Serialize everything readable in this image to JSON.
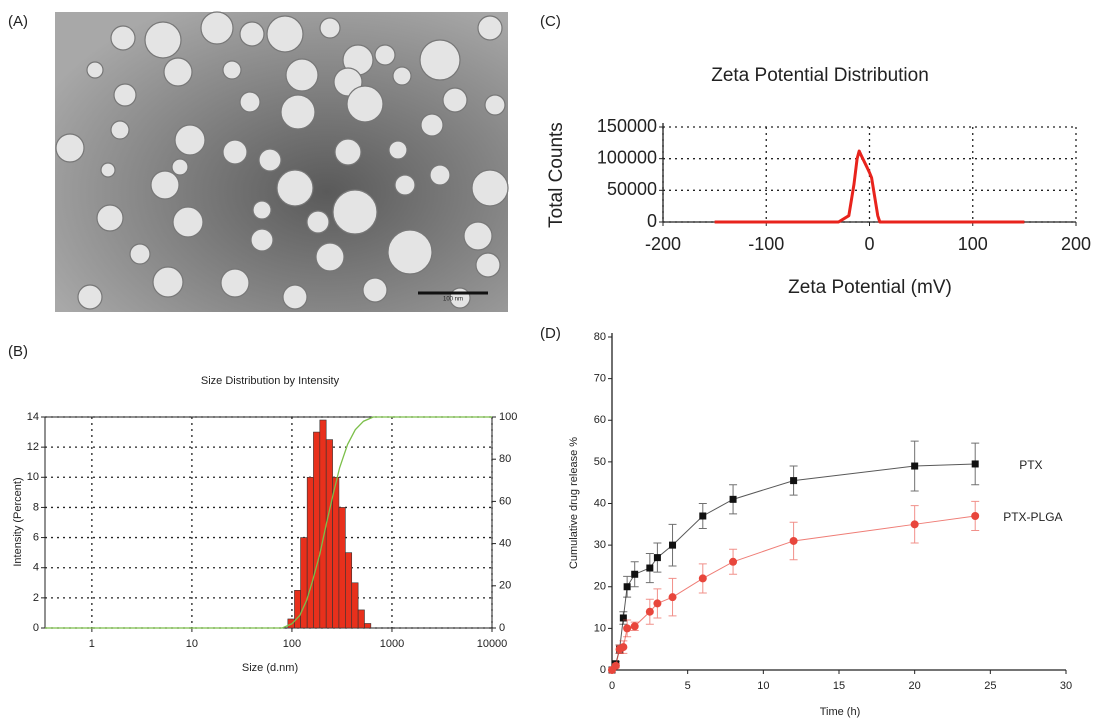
{
  "chart_data": [
    {
      "type": "image",
      "panel": "(A)",
      "scale_bar": "100 nm"
    },
    {
      "type": "histogram",
      "panel": "(B)",
      "title": "Size Distribution by Intensity",
      "x_label": "Size (d.nm)",
      "y_label": "Intensity (Percent)",
      "xscale": "log",
      "xlim": [
        0.34,
        10000
      ],
      "xticks": [
        1,
        10,
        100,
        1000,
        10000
      ],
      "ylim": [
        0,
        14
      ],
      "yticks": [
        0,
        2,
        4,
        6,
        8,
        10,
        12,
        14
      ],
      "y2lim": [
        0,
        100
      ],
      "y2ticks": [
        0,
        20,
        40,
        60,
        80,
        100
      ],
      "grid": true,
      "bins": [
        91,
        106,
        122,
        142,
        164,
        190,
        220,
        255,
        295,
        342,
        396,
        459,
        531,
        615
      ],
      "values": [
        0.6,
        2.5,
        6,
        10,
        13,
        13.8,
        12.5,
        10,
        8,
        5,
        3,
        1.2,
        0.3
      ],
      "color": "#e8301c",
      "cumulative": {
        "axis": "y2",
        "color": "#7cbf4a",
        "x": [
          0.34,
          80,
          100,
          120,
          140,
          160,
          190,
          220,
          260,
          300,
          360,
          430,
          520,
          650,
          10000
        ],
        "values": [
          0,
          0,
          2,
          6,
          13,
          22,
          35,
          49,
          64,
          76,
          87,
          94,
          98,
          100,
          100
        ]
      }
    },
    {
      "type": "line",
      "panel": "(C)",
      "title": "Zeta Potential Distribution",
      "x_label": "Zeta Potential (mV)",
      "y_label": "Total Counts",
      "xlim": [
        -200,
        200
      ],
      "xticks": [
        -200,
        -100,
        0,
        100,
        200
      ],
      "ylim": [
        0,
        150000
      ],
      "yticks": [
        0,
        50000,
        100000,
        150000
      ],
      "grid": true,
      "series": [
        {
          "color": "#e8231c",
          "x": [
            -150,
            -30,
            -20,
            -15,
            -12,
            -10,
            -8,
            -5,
            -2,
            0,
            2,
            5,
            8,
            10,
            150
          ],
          "values": [
            0,
            0,
            10000,
            60000,
            100000,
            112000,
            105000,
            95000,
            85000,
            78000,
            70000,
            40000,
            10000,
            0,
            0
          ]
        }
      ]
    },
    {
      "type": "errorline",
      "panel": "(D)",
      "x_label": "Time (h)",
      "y_label": "Cumulative drug release %",
      "xlim": [
        0,
        30
      ],
      "xticks": [
        0,
        5,
        10,
        15,
        20,
        25,
        30
      ],
      "ylim": [
        0,
        80
      ],
      "yticks": [
        0,
        10,
        20,
        30,
        40,
        50,
        60,
        70,
        80
      ],
      "grid": false,
      "x": [
        0,
        0.25,
        0.5,
        0.75,
        1,
        1.5,
        2.5,
        3,
        4,
        6,
        8,
        12,
        20,
        24
      ],
      "series": [
        {
          "name": "PTX",
          "color": "#111111",
          "marker": "square",
          "values": [
            0,
            1.5,
            5,
            12.5,
            20,
            23,
            24.5,
            27,
            30,
            37,
            41,
            45.5,
            49,
            49.5
          ],
          "errors": [
            0,
            0.5,
            1,
            1.5,
            2.5,
            3,
            3.5,
            3.5,
            5,
            3,
            3.5,
            3.5,
            6,
            5
          ]
        },
        {
          "name": "PTX-PLGA",
          "color": "#e8463c",
          "marker": "circle",
          "values": [
            0,
            1,
            5,
            5.5,
            10,
            10.5,
            14,
            16,
            17.5,
            22,
            26,
            31,
            35,
            37
          ],
          "errors": [
            0,
            0.5,
            1,
            1.5,
            2,
            1,
            3,
            3.5,
            4.5,
            3.5,
            3,
            4.5,
            4.5,
            3.5
          ]
        }
      ]
    }
  ]
}
